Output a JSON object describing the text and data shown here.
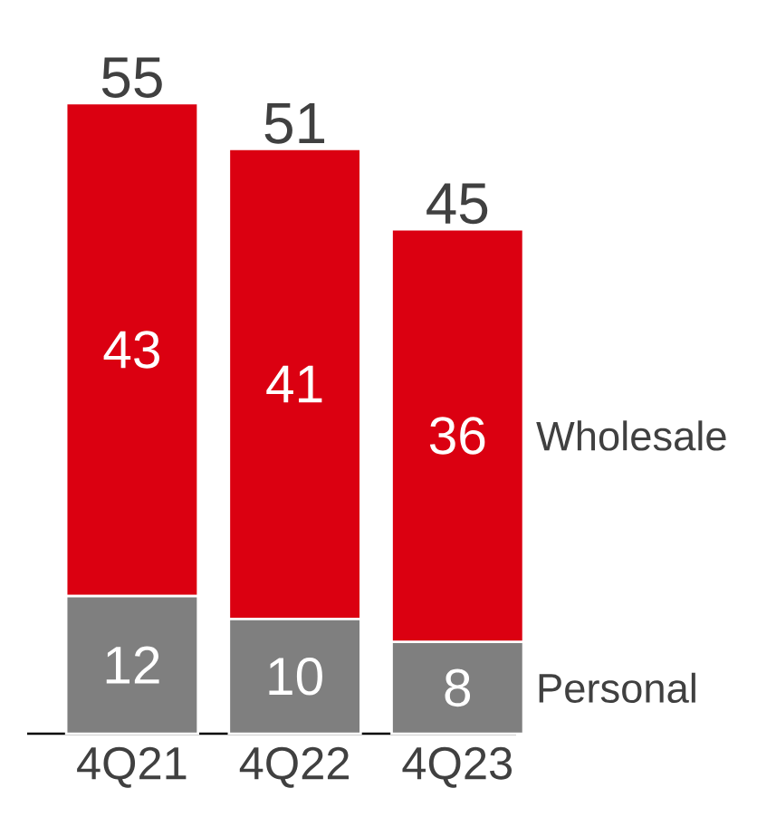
{
  "chart_data": {
    "type": "bar",
    "stacked": true,
    "categories": [
      "4Q21",
      "4Q22",
      "4Q23"
    ],
    "series": [
      {
        "name": "Personal",
        "color": "#7f7f7f",
        "values": [
          12,
          10,
          8
        ]
      },
      {
        "name": "Wholesale",
        "color": "#db0011",
        "values": [
          43,
          41,
          36
        ]
      }
    ],
    "totals": [
      "55",
      "51",
      "45"
    ],
    "data_labels": true,
    "tick_labels": "x",
    "legend": false,
    "grid": false
  }
}
